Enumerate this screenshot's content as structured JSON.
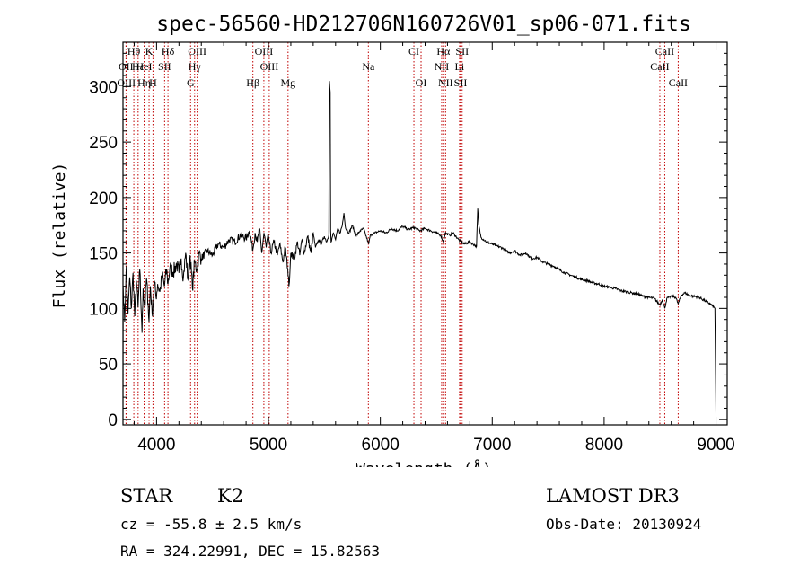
{
  "chart_data": {
    "type": "line",
    "title": "spec-56560-HD212706N160726V01_sp06-071.fits",
    "xlabel": "Wavelength (Å)",
    "ylabel": "Flux (relative)",
    "xlim": [
      3700,
      9100
    ],
    "ylim": [
      -5,
      340
    ],
    "xticks": [
      4000,
      5000,
      6000,
      7000,
      8000,
      9000
    ],
    "yticks": [
      0,
      50,
      100,
      150,
      200,
      250,
      300
    ],
    "series": [
      {
        "name": "spectrum",
        "color": "#000000",
        "points": [
          [
            3700,
            0
          ],
          [
            3702,
            120
          ],
          [
            3715,
            88
          ],
          [
            3730,
            138
          ],
          [
            3745,
            95
          ],
          [
            3760,
            128
          ],
          [
            3775,
            100
          ],
          [
            3790,
            132
          ],
          [
            3805,
            93
          ],
          [
            3820,
            125
          ],
          [
            3835,
            101
          ],
          [
            3850,
            135
          ],
          [
            3865,
            92
          ],
          [
            3870,
            78
          ],
          [
            3880,
            118
          ],
          [
            3895,
            100
          ],
          [
            3910,
            127
          ],
          [
            3925,
            104
          ],
          [
            3933,
            88
          ],
          [
            3945,
            120
          ],
          [
            3960,
            96
          ],
          [
            3968,
            102
          ],
          [
            3980,
            125
          ],
          [
            3995,
            110
          ],
          [
            4010,
            122
          ],
          [
            4030,
            115
          ],
          [
            4050,
            130
          ],
          [
            4070,
            120
          ],
          [
            4090,
            135
          ],
          [
            4102,
            122
          ],
          [
            4120,
            137
          ],
          [
            4150,
            133
          ],
          [
            4180,
            140
          ],
          [
            4200,
            132
          ],
          [
            4220,
            145
          ],
          [
            4240,
            128
          ],
          [
            4260,
            150
          ],
          [
            4280,
            126
          ],
          [
            4300,
            148
          ],
          [
            4320,
            118
          ],
          [
            4340,
            142
          ],
          [
            4360,
            135
          ],
          [
            4380,
            150
          ],
          [
            4400,
            145
          ],
          [
            4450,
            152
          ],
          [
            4500,
            148
          ],
          [
            4550,
            158
          ],
          [
            4600,
            155
          ],
          [
            4650,
            162
          ],
          [
            4700,
            160
          ],
          [
            4750,
            166
          ],
          [
            4800,
            163
          ],
          [
            4830,
            170
          ],
          [
            4861,
            153
          ],
          [
            4880,
            168
          ],
          [
            4900,
            160
          ],
          [
            4920,
            172
          ],
          [
            4940,
            150
          ],
          [
            4960,
            168
          ],
          [
            4980,
            155
          ],
          [
            5000,
            166
          ],
          [
            5020,
            150
          ],
          [
            5050,
            160
          ],
          [
            5080,
            148
          ],
          [
            5100,
            158
          ],
          [
            5130,
            142
          ],
          [
            5150,
            155
          ],
          [
            5172,
            136
          ],
          [
            5183,
            120
          ],
          [
            5200,
            150
          ],
          [
            5230,
            145
          ],
          [
            5260,
            160
          ],
          [
            5280,
            148
          ],
          [
            5300,
            162
          ],
          [
            5320,
            150
          ],
          [
            5350,
            165
          ],
          [
            5380,
            150
          ],
          [
            5400,
            168
          ],
          [
            5420,
            155
          ],
          [
            5450,
            162
          ],
          [
            5470,
            158
          ],
          [
            5500,
            165
          ],
          [
            5520,
            160
          ],
          [
            5540,
            166
          ],
          [
            5545,
            305
          ],
          [
            5552,
            295
          ],
          [
            5556,
            170
          ],
          [
            5560,
            160
          ],
          [
            5580,
            168
          ],
          [
            5600,
            162
          ],
          [
            5620,
            172
          ],
          [
            5640,
            168
          ],
          [
            5660,
            175
          ],
          [
            5675,
            186
          ],
          [
            5690,
            172
          ],
          [
            5720,
            168
          ],
          [
            5750,
            175
          ],
          [
            5780,
            165
          ],
          [
            5820,
            170
          ],
          [
            5850,
            172
          ],
          [
            5890,
            160
          ],
          [
            5896,
            158
          ],
          [
            5910,
            166
          ],
          [
            5950,
            168
          ],
          [
            6000,
            170
          ],
          [
            6050,
            168
          ],
          [
            6100,
            172
          ],
          [
            6150,
            170
          ],
          [
            6200,
            174
          ],
          [
            6250,
            171
          ],
          [
            6300,
            173
          ],
          [
            6350,
            170
          ],
          [
            6400,
            172
          ],
          [
            6450,
            170
          ],
          [
            6500,
            168
          ],
          [
            6540,
            166
          ],
          [
            6563,
            160
          ],
          [
            6580,
            168
          ],
          [
            6620,
            166
          ],
          [
            6650,
            168
          ],
          [
            6700,
            162
          ],
          [
            6750,
            158
          ],
          [
            6800,
            160
          ],
          [
            6860,
            156
          ],
          [
            6870,
            190
          ],
          [
            6880,
            175
          ],
          [
            6900,
            164
          ],
          [
            6950,
            160
          ],
          [
            7000,
            158
          ],
          [
            7050,
            156
          ],
          [
            7100,
            154
          ],
          [
            7150,
            150
          ],
          [
            7200,
            152
          ],
          [
            7250,
            148
          ],
          [
            7300,
            150
          ],
          [
            7350,
            145
          ],
          [
            7400,
            146
          ],
          [
            7450,
            142
          ],
          [
            7500,
            140
          ],
          [
            7550,
            138
          ],
          [
            7600,
            135
          ],
          [
            7650,
            132
          ],
          [
            7700,
            130
          ],
          [
            7750,
            128
          ],
          [
            7800,
            126
          ],
          [
            7850,
            125
          ],
          [
            7900,
            123
          ],
          [
            7950,
            122
          ],
          [
            8000,
            120
          ],
          [
            8050,
            119
          ],
          [
            8100,
            118
          ],
          [
            8150,
            116
          ],
          [
            8200,
            115
          ],
          [
            8250,
            114
          ],
          [
            8300,
            113
          ],
          [
            8350,
            111
          ],
          [
            8400,
            110
          ],
          [
            8450,
            109
          ],
          [
            8498,
            103
          ],
          [
            8520,
            108
          ],
          [
            8542,
            100
          ],
          [
            8560,
            109
          ],
          [
            8600,
            111
          ],
          [
            8640,
            110
          ],
          [
            8662,
            104
          ],
          [
            8690,
            112
          ],
          [
            8720,
            114
          ],
          [
            8760,
            112
          ],
          [
            8800,
            111
          ],
          [
            8850,
            110
          ],
          [
            8900,
            107
          ],
          [
            8950,
            104
          ],
          [
            8990,
            100
          ],
          [
            9000,
            5
          ]
        ]
      }
    ],
    "line_markers": [
      {
        "label": "Hθ",
        "wavelength": 3797,
        "row": 0
      },
      {
        "label": "K",
        "wavelength": 3933,
        "row": 0
      },
      {
        "label": "Hδ",
        "wavelength": 4102,
        "row": 0
      },
      {
        "label": "OIII",
        "wavelength": 4363,
        "row": 0
      },
      {
        "label": "OIII",
        "wavelength": 4959,
        "row": 0
      },
      {
        "label": "CI",
        "wavelength": 6300,
        "row": 0
      },
      {
        "label": "Hα",
        "wavelength": 6563,
        "row": 0
      },
      {
        "label": "SII",
        "wavelength": 6731,
        "row": 0
      },
      {
        "label": "CaII",
        "wavelength": 8542,
        "row": 0
      },
      {
        "label": "OII",
        "wavelength": 3727,
        "row": 1
      },
      {
        "label": "Hε",
        "wavelength": 3835,
        "row": 1
      },
      {
        "label": "HeI",
        "wavelength": 3889,
        "row": 1
      },
      {
        "label": "SII",
        "wavelength": 4072,
        "row": 1
      },
      {
        "label": "Hγ",
        "wavelength": 4340,
        "row": 1
      },
      {
        "label": "OIII",
        "wavelength": 5007,
        "row": 1
      },
      {
        "label": "Na",
        "wavelength": 5893,
        "row": 1
      },
      {
        "label": "NII",
        "wavelength": 6548,
        "row": 1
      },
      {
        "label": "Li",
        "wavelength": 6708,
        "row": 1
      },
      {
        "label": "CaII",
        "wavelength": 8498,
        "row": 1
      },
      {
        "label": "OIII",
        "wavelength": 3730,
        "row": 2
      },
      {
        "label": "Hη",
        "wavelength": 3889,
        "row": 2
      },
      {
        "label": "H",
        "wavelength": 3968,
        "row": 2
      },
      {
        "label": "G",
        "wavelength": 4304,
        "row": 2
      },
      {
        "label": "Hβ",
        "wavelength": 4861,
        "row": 2
      },
      {
        "label": "Mg",
        "wavelength": 5175,
        "row": 2
      },
      {
        "label": "OI",
        "wavelength": 6364,
        "row": 2
      },
      {
        "label": "NII",
        "wavelength": 6583,
        "row": 2
      },
      {
        "label": "SII",
        "wavelength": 6717,
        "row": 2
      },
      {
        "label": "CaII",
        "wavelength": 8662,
        "row": 2
      }
    ],
    "marker_color": "#c00000",
    "axis_color": "#000000"
  },
  "info": {
    "object_class": "STAR",
    "subclass": "K2",
    "survey": "LAMOST DR3",
    "cz": "cz = -55.8 ± 2.5 km/s",
    "obs_date": "Obs-Date: 20130924",
    "radec": "RA = 324.22991, DEC =  15.82563"
  }
}
